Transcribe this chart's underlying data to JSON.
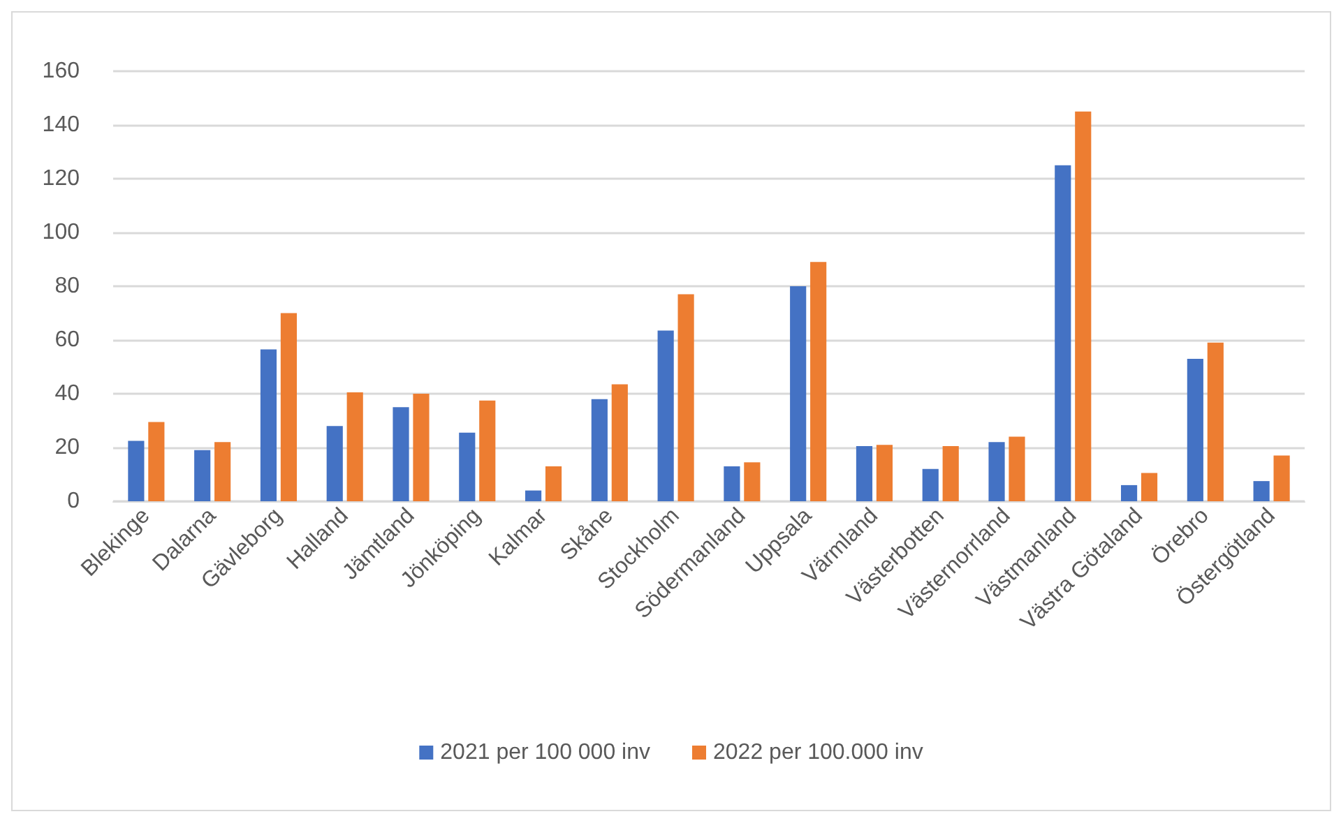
{
  "chart_data": {
    "type": "bar",
    "categories": [
      "Blekinge",
      "Dalarna",
      "Gävleborg",
      "Halland",
      "Jämtland",
      "Jönköping",
      "Kalmar",
      "Skåne",
      "Stockholm",
      "Södermanland",
      "Uppsala",
      "Värmland",
      "Västerbotten",
      "Västernorrland",
      "Västmanland",
      "Västra Götaland",
      "Örebro",
      "Östergötland"
    ],
    "series": [
      {
        "name": "2021 per 100 000 inv",
        "color": "#4472c4",
        "values": [
          22.5,
          19,
          56.5,
          28,
          35,
          25.5,
          4,
          38,
          63.5,
          13,
          80,
          20.5,
          12,
          22,
          125,
          6,
          53,
          7.5
        ]
      },
      {
        "name": "2022 per 100.000 inv",
        "color": "#ed7d31",
        "values": [
          29.5,
          22,
          70,
          40.5,
          40,
          37.5,
          13,
          43.5,
          77,
          14.5,
          89,
          21,
          20.5,
          24,
          145,
          10.5,
          59,
          17
        ]
      }
    ],
    "ylim": [
      0,
      160
    ],
    "yticks": [
      0,
      20,
      40,
      60,
      80,
      100,
      120,
      140,
      160
    ],
    "grid": "y",
    "legend": "bottom"
  }
}
